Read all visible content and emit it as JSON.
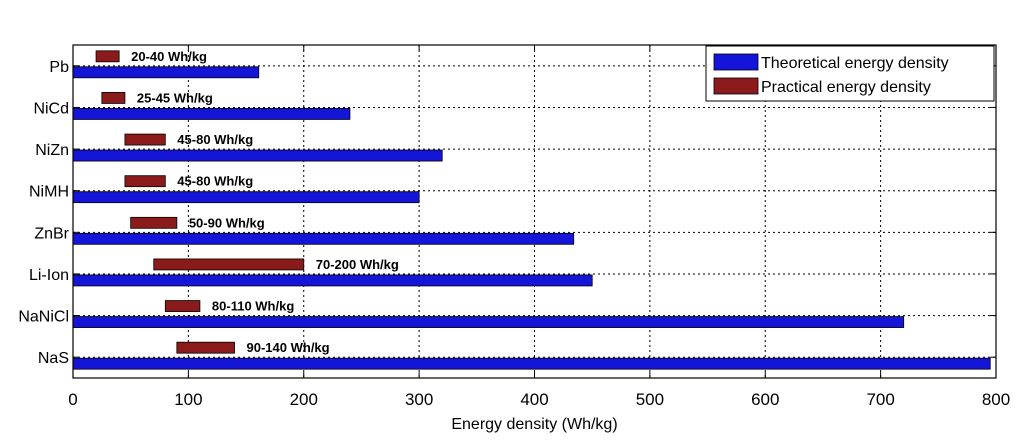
{
  "chart_data": {
    "type": "bar",
    "orientation": "horizontal",
    "categories": [
      "Pb",
      "NiCd",
      "NiZn",
      "NiMH",
      "ZnBr",
      "Li-Ion",
      "NaNiCl",
      "NaS"
    ],
    "series": [
      {
        "name": "Theoretical energy density",
        "color": "#1515d9",
        "values": [
          161,
          240,
          320,
          300,
          434,
          450,
          720,
          795
        ]
      },
      {
        "name": "Practical energy density",
        "color": "#8b1a1a",
        "ranges": [
          [
            20,
            40
          ],
          [
            25,
            45
          ],
          [
            45,
            80
          ],
          [
            45,
            80
          ],
          [
            50,
            90
          ],
          [
            70,
            200
          ],
          [
            80,
            110
          ],
          [
            90,
            140
          ]
        ],
        "labels": [
          "20-40 Wh/kg",
          "25-45 Wh/kg",
          "45-80 Wh/kg",
          "45-80 Wh/kg",
          "50-90 Wh/kg",
          "70-200 Wh/kg",
          "80-110 Wh/kg",
          "90-140 Wh/kg"
        ]
      }
    ],
    "xlabel": "Energy density (Wh/kg)",
    "ylabel": "",
    "xlim": [
      0,
      800
    ],
    "xticks": [
      0,
      100,
      200,
      300,
      400,
      500,
      600,
      700,
      800
    ],
    "grid": true,
    "legend_position": "top-right"
  }
}
